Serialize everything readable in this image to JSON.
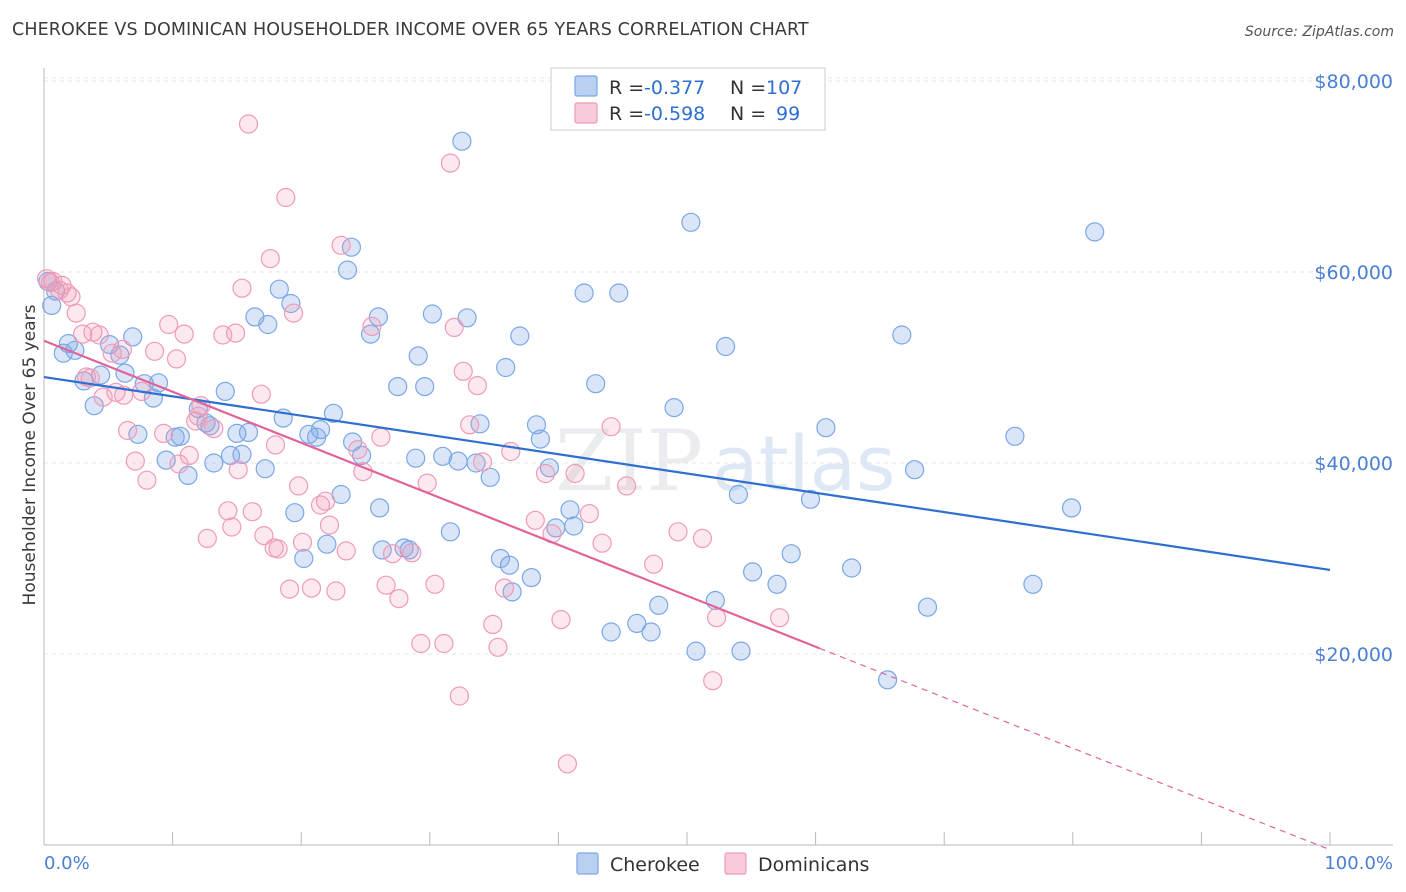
{
  "title": "CHEROKEE VS DOMINICAN HOUSEHOLDER INCOME OVER 65 YEARS CORRELATION CHART",
  "source": "Source: ZipAtlas.com",
  "watermark": "ZIPatlas",
  "colors": {
    "cherokee": "#7aa7e6",
    "cherokee_line": "#2e6fd0",
    "dominicans": "#f09ab7",
    "dominicans_line": "#e0649a",
    "accent_text": "#4a7fd3"
  },
  "legend": {
    "rows": [
      {
        "r_label": "R =",
        "r_value": "-0.377",
        "n_label": "N =",
        "n_value": "107"
      },
      {
        "r_label": "R =",
        "r_value": "-0.598",
        "n_label": "N =",
        "n_value": "99"
      }
    ]
  },
  "bottom_legend": [
    "Cherokee",
    "Dominicans"
  ],
  "chart_data": {
    "type": "scatter",
    "title": "CHEROKEE VS DOMINICAN HOUSEHOLDER INCOME OVER 65 YEARS CORRELATION CHART",
    "xlabel": "",
    "ylabel": "Householder Income Over 65 years",
    "xlim": [
      0,
      100
    ],
    "ylim": [
      0,
      82000
    ],
    "x_tick_labels": [
      "0.0%",
      "100.0%"
    ],
    "y_ticks": [
      20000,
      40000,
      60000,
      80000
    ],
    "y_tick_labels": [
      "$20,000",
      "$40,000",
      "$60,000",
      "$80,000"
    ],
    "grid": true,
    "series": [
      {
        "name": "Cherokee",
        "r": -0.377,
        "n": 107,
        "trend": {
          "x0": 0,
          "y0": 49000,
          "x1": 100,
          "y1": 28800
        },
        "points": [
          [
            0.3,
            59000
          ],
          [
            0.6,
            56500
          ],
          [
            0.9,
            58000
          ],
          [
            1.5,
            51500
          ],
          [
            1.9,
            52500
          ],
          [
            2.4,
            51800
          ],
          [
            3.1,
            48600
          ],
          [
            3.9,
            46000
          ],
          [
            4.4,
            49200
          ],
          [
            5.1,
            52400
          ],
          [
            5.9,
            51300
          ],
          [
            6.3,
            49400
          ],
          [
            6.9,
            53200
          ],
          [
            7.3,
            43000
          ],
          [
            7.8,
            48300
          ],
          [
            8.5,
            46800
          ],
          [
            8.9,
            48400
          ],
          [
            9.5,
            40300
          ],
          [
            10.2,
            42700
          ],
          [
            10.6,
            42800
          ],
          [
            11.2,
            38700
          ],
          [
            12.0,
            45700
          ],
          [
            12.6,
            44200
          ],
          [
            13.2,
            40000
          ],
          [
            14.1,
            47500
          ],
          [
            14.5,
            40800
          ],
          [
            15.0,
            43100
          ],
          [
            15.4,
            40900
          ],
          [
            15.9,
            43200
          ],
          [
            16.4,
            55300
          ],
          [
            17.2,
            39400
          ],
          [
            17.4,
            54500
          ],
          [
            18.3,
            58200
          ],
          [
            18.6,
            44700
          ],
          [
            19.2,
            56700
          ],
          [
            19.5,
            34800
          ],
          [
            20.2,
            30000
          ],
          [
            20.6,
            43000
          ],
          [
            21.2,
            42700
          ],
          [
            21.5,
            43500
          ],
          [
            22.0,
            31500
          ],
          [
            22.5,
            45200
          ],
          [
            23.1,
            36700
          ],
          [
            23.6,
            60200
          ],
          [
            23.9,
            62600
          ],
          [
            24.0,
            42200
          ],
          [
            24.7,
            40800
          ],
          [
            25.4,
            53500
          ],
          [
            26.0,
            55300
          ],
          [
            26.1,
            35300
          ],
          [
            26.3,
            30900
          ],
          [
            27.5,
            48000
          ],
          [
            28.0,
            31100
          ],
          [
            28.4,
            30900
          ],
          [
            28.9,
            40500
          ],
          [
            29.1,
            51200
          ],
          [
            29.6,
            48000
          ],
          [
            30.2,
            55600
          ],
          [
            31.0,
            40700
          ],
          [
            31.6,
            32800
          ],
          [
            32.2,
            40200
          ],
          [
            32.5,
            73700
          ],
          [
            32.9,
            55200
          ],
          [
            33.6,
            40000
          ],
          [
            33.9,
            44100
          ],
          [
            34.7,
            38500
          ],
          [
            35.5,
            30000
          ],
          [
            35.9,
            50000
          ],
          [
            36.2,
            29300
          ],
          [
            36.4,
            26500
          ],
          [
            37.0,
            53300
          ],
          [
            38.3,
            44000
          ],
          [
            38.6,
            42500
          ],
          [
            39.3,
            39500
          ],
          [
            39.8,
            33200
          ],
          [
            40.9,
            35100
          ],
          [
            41.2,
            33400
          ],
          [
            42.0,
            57800
          ],
          [
            42.9,
            48300
          ],
          [
            44.1,
            22300
          ],
          [
            44.7,
            57800
          ],
          [
            46.1,
            23200
          ],
          [
            47.8,
            25100
          ],
          [
            49.0,
            45800
          ],
          [
            50.3,
            65200
          ],
          [
            50.7,
            20300
          ],
          [
            52.2,
            25600
          ],
          [
            53.0,
            52200
          ],
          [
            54.0,
            36700
          ],
          [
            55.1,
            28600
          ],
          [
            57.0,
            27300
          ],
          [
            58.1,
            30500
          ],
          [
            59.6,
            36200
          ],
          [
            60.8,
            43700
          ],
          [
            62.8,
            29000
          ],
          [
            65.6,
            17300
          ],
          [
            66.7,
            53400
          ],
          [
            67.7,
            39300
          ],
          [
            68.7,
            24900
          ],
          [
            75.5,
            42800
          ],
          [
            76.9,
            27300
          ],
          [
            79.9,
            35300
          ],
          [
            81.7,
            64200
          ],
          [
            54.2,
            20300
          ],
          [
            47.2,
            22300
          ],
          [
            37.9,
            28000
          ],
          [
            12.9,
            43900
          ]
        ]
      },
      {
        "name": "Dominicans",
        "r": -0.598,
        "n": 99,
        "trend": {
          "x0": 0,
          "y0": 52800,
          "x1": 60.3,
          "y1": 20600,
          "dashed_to": {
            "x": 100,
            "y": -500
          }
        },
        "points": [
          [
            0.2,
            59300
          ],
          [
            0.7,
            59000
          ],
          [
            1.2,
            58100
          ],
          [
            1.8,
            57800
          ],
          [
            2.5,
            55700
          ],
          [
            3.0,
            53500
          ],
          [
            3.3,
            49000
          ],
          [
            3.8,
            53700
          ],
          [
            4.3,
            53400
          ],
          [
            4.6,
            46900
          ],
          [
            5.3,
            51500
          ],
          [
            5.6,
            47400
          ],
          [
            6.1,
            51900
          ],
          [
            6.5,
            43400
          ],
          [
            7.1,
            40200
          ],
          [
            7.6,
            47500
          ],
          [
            8.0,
            38200
          ],
          [
            8.6,
            51700
          ],
          [
            9.3,
            43100
          ],
          [
            9.7,
            54500
          ],
          [
            10.3,
            50900
          ],
          [
            10.9,
            53500
          ],
          [
            11.3,
            40800
          ],
          [
            11.8,
            44400
          ],
          [
            12.2,
            46000
          ],
          [
            12.7,
            32100
          ],
          [
            13.2,
            43600
          ],
          [
            13.9,
            53400
          ],
          [
            14.3,
            35000
          ],
          [
            14.6,
            33300
          ],
          [
            15.1,
            39300
          ],
          [
            15.4,
            58300
          ],
          [
            15.9,
            75500
          ],
          [
            16.2,
            34900
          ],
          [
            16.9,
            47200
          ],
          [
            17.1,
            32400
          ],
          [
            17.6,
            61400
          ],
          [
            17.9,
            31100
          ],
          [
            18.2,
            31000
          ],
          [
            18.8,
            67800
          ],
          [
            19.1,
            26800
          ],
          [
            19.4,
            55700
          ],
          [
            19.8,
            37600
          ],
          [
            20.1,
            31700
          ],
          [
            20.8,
            26900
          ],
          [
            21.5,
            35600
          ],
          [
            21.9,
            36000
          ],
          [
            22.2,
            33500
          ],
          [
            22.7,
            26600
          ],
          [
            23.1,
            62800
          ],
          [
            23.5,
            30800
          ],
          [
            24.4,
            41400
          ],
          [
            24.8,
            39100
          ],
          [
            25.5,
            54300
          ],
          [
            26.2,
            42700
          ],
          [
            26.6,
            27200
          ],
          [
            27.1,
            30500
          ],
          [
            27.6,
            25800
          ],
          [
            28.6,
            30600
          ],
          [
            29.3,
            21100
          ],
          [
            29.8,
            37900
          ],
          [
            30.4,
            27300
          ],
          [
            31.1,
            21100
          ],
          [
            31.6,
            71400
          ],
          [
            31.9,
            54200
          ],
          [
            32.3,
            15600
          ],
          [
            32.6,
            49600
          ],
          [
            33.1,
            44000
          ],
          [
            33.7,
            48100
          ],
          [
            34.1,
            40100
          ],
          [
            34.9,
            23100
          ],
          [
            35.3,
            20700
          ],
          [
            35.8,
            26900
          ],
          [
            36.3,
            41200
          ],
          [
            38.2,
            34000
          ],
          [
            39.0,
            38900
          ],
          [
            39.5,
            32600
          ],
          [
            40.2,
            23600
          ],
          [
            40.7,
            8500
          ],
          [
            41.3,
            38900
          ],
          [
            42.4,
            34700
          ],
          [
            43.4,
            31600
          ],
          [
            44.1,
            43800
          ],
          [
            45.3,
            37600
          ],
          [
            47.4,
            29400
          ],
          [
            49.3,
            32800
          ],
          [
            51.2,
            32100
          ],
          [
            52.0,
            17200
          ],
          [
            52.3,
            23800
          ],
          [
            57.2,
            23800
          ],
          [
            10.5,
            39900
          ],
          [
            12.0,
            44900
          ],
          [
            6.2,
            47100
          ],
          [
            3.6,
            48900
          ],
          [
            0.5,
            58900
          ],
          [
            1.4,
            58600
          ],
          [
            2.1,
            57400
          ],
          [
            14.9,
            53600
          ],
          [
            18.0,
            41900
          ]
        ]
      }
    ]
  }
}
